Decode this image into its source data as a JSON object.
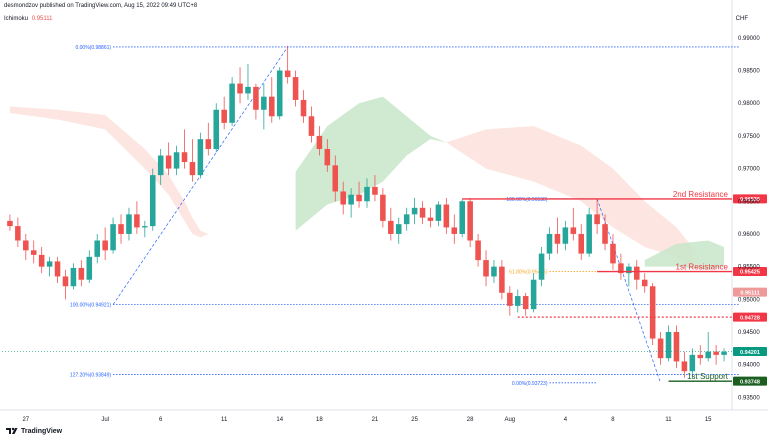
{
  "header": {
    "text": "desmondzov published on TradingView.com, Aug 15, 2022 09:49 UTC+8"
  },
  "indicator": {
    "name": "Ichimoku",
    "value": "0.95111"
  },
  "currency": "CHF",
  "footer": {
    "brand": "TradingView"
  },
  "colors": {
    "up": "#26a69a",
    "down": "#ef5350",
    "cloud_bull": "#c8e6c9",
    "cloud_bear": "#fde0dc",
    "fib": "#2962ff",
    "resistance": "#f23645",
    "support": "#1b5e20"
  },
  "chart_data": {
    "type": "candlestick",
    "ylim": [
      0.9346,
      0.9912
    ],
    "y_ticks": [
      "0.93500",
      "0.94000",
      "0.94500",
      "0.95000",
      "0.95500",
      "0.96000",
      "0.96500",
      "0.97000",
      "0.97500",
      "0.98000",
      "0.98500",
      "0.99000"
    ],
    "x_labels": [
      {
        "label": "27",
        "i": 2
      },
      {
        "label": "Jul",
        "i": 12
      },
      {
        "label": "6",
        "i": 19
      },
      {
        "label": "11",
        "i": 27
      },
      {
        "label": "14",
        "i": 34
      },
      {
        "label": "18",
        "i": 39
      },
      {
        "label": "21",
        "i": 46
      },
      {
        "label": "25",
        "i": 51
      },
      {
        "label": "28",
        "i": 58
      },
      {
        "label": "Aug",
        "i": 63
      },
      {
        "label": "4",
        "i": 70
      },
      {
        "label": "8",
        "i": 76
      },
      {
        "label": "11",
        "i": 83
      },
      {
        "label": "15",
        "i": 88
      }
    ],
    "candles": [
      [
        0.962,
        0.963,
        0.9605,
        0.9612
      ],
      [
        0.9612,
        0.9625,
        0.958,
        0.959
      ],
      [
        0.959,
        0.96,
        0.956,
        0.9575
      ],
      [
        0.9575,
        0.959,
        0.9555,
        0.9568
      ],
      [
        0.9568,
        0.958,
        0.954,
        0.955
      ],
      [
        0.955,
        0.9565,
        0.9535,
        0.9558
      ],
      [
        0.9558,
        0.9565,
        0.9525,
        0.9535
      ],
      [
        0.9535,
        0.9545,
        0.95,
        0.952
      ],
      [
        0.952,
        0.9555,
        0.9515,
        0.9548
      ],
      [
        0.9548,
        0.956,
        0.952,
        0.953
      ],
      [
        0.953,
        0.9575,
        0.9525,
        0.9565
      ],
      [
        0.9565,
        0.96,
        0.9555,
        0.959
      ],
      [
        0.959,
        0.961,
        0.956,
        0.9575
      ],
      [
        0.9575,
        0.9625,
        0.957,
        0.9615
      ],
      [
        0.9615,
        0.963,
        0.9585,
        0.96
      ],
      [
        0.96,
        0.964,
        0.959,
        0.963
      ],
      [
        0.963,
        0.965,
        0.96,
        0.961
      ],
      [
        0.961,
        0.962,
        0.9595,
        0.9612
      ],
      [
        0.9612,
        0.97,
        0.9605,
        0.969
      ],
      [
        0.969,
        0.973,
        0.9675,
        0.972
      ],
      [
        0.972,
        0.974,
        0.969,
        0.97
      ],
      [
        0.97,
        0.9735,
        0.969,
        0.9725
      ],
      [
        0.9725,
        0.976,
        0.97,
        0.971
      ],
      [
        0.971,
        0.9745,
        0.968,
        0.969
      ],
      [
        0.969,
        0.9755,
        0.9685,
        0.9745
      ],
      [
        0.9745,
        0.977,
        0.972,
        0.973
      ],
      [
        0.973,
        0.98,
        0.9725,
        0.979
      ],
      [
        0.979,
        0.981,
        0.976,
        0.977
      ],
      [
        0.977,
        0.984,
        0.9765,
        0.983
      ],
      [
        0.983,
        0.9855,
        0.98,
        0.9815
      ],
      [
        0.9815,
        0.986,
        0.9805,
        0.9825
      ],
      [
        0.9825,
        0.983,
        0.9775,
        0.979
      ],
      [
        0.979,
        0.983,
        0.976,
        0.981
      ],
      [
        0.981,
        0.984,
        0.977,
        0.978
      ],
      [
        0.978,
        0.9855,
        0.9775,
        0.985
      ],
      [
        0.985,
        0.9888,
        0.983,
        0.984
      ],
      [
        0.984,
        0.985,
        0.9795,
        0.9805
      ],
      [
        0.9805,
        0.982,
        0.977,
        0.978
      ],
      [
        0.978,
        0.9795,
        0.974,
        0.975
      ],
      [
        0.975,
        0.9765,
        0.972,
        0.973
      ],
      [
        0.973,
        0.9745,
        0.9695,
        0.9705
      ],
      [
        0.9705,
        0.972,
        0.965,
        0.9665
      ],
      [
        0.9665,
        0.968,
        0.963,
        0.9645
      ],
      [
        0.9645,
        0.967,
        0.9625,
        0.966
      ],
      [
        0.966,
        0.968,
        0.964,
        0.965
      ],
      [
        0.965,
        0.9685,
        0.964,
        0.9672
      ],
      [
        0.9672,
        0.969,
        0.965,
        0.966
      ],
      [
        0.966,
        0.967,
        0.961,
        0.962
      ],
      [
        0.962,
        0.964,
        0.959,
        0.96
      ],
      [
        0.96,
        0.9625,
        0.9585,
        0.9615
      ],
      [
        0.9615,
        0.964,
        0.9605,
        0.963
      ],
      [
        0.963,
        0.9655,
        0.9615,
        0.964
      ],
      [
        0.964,
        0.965,
        0.9615,
        0.9625
      ],
      [
        0.9625,
        0.964,
        0.961,
        0.962
      ],
      [
        0.962,
        0.965,
        0.9612,
        0.9645
      ],
      [
        0.9645,
        0.9655,
        0.96,
        0.961
      ],
      [
        0.961,
        0.963,
        0.9585,
        0.96
      ],
      [
        0.96,
        0.9653,
        0.9595,
        0.965
      ],
      [
        0.965,
        0.9655,
        0.958,
        0.959
      ],
      [
        0.959,
        0.96,
        0.955,
        0.956
      ],
      [
        0.956,
        0.9575,
        0.952,
        0.9535
      ],
      [
        0.9535,
        0.956,
        0.9525,
        0.955
      ],
      [
        0.955,
        0.956,
        0.95,
        0.951
      ],
      [
        0.951,
        0.952,
        0.9475,
        0.949
      ],
      [
        0.949,
        0.9515,
        0.948,
        0.9505
      ],
      [
        0.9505,
        0.951,
        0.9475,
        0.9485
      ],
      [
        0.9485,
        0.954,
        0.948,
        0.953
      ],
      [
        0.953,
        0.958,
        0.952,
        0.957
      ],
      [
        0.957,
        0.961,
        0.956,
        0.96
      ],
      [
        0.96,
        0.9625,
        0.957,
        0.9585
      ],
      [
        0.9585,
        0.962,
        0.9575,
        0.961
      ],
      [
        0.961,
        0.964,
        0.959,
        0.96
      ],
      [
        0.96,
        0.9615,
        0.956,
        0.957
      ],
      [
        0.957,
        0.964,
        0.9565,
        0.963
      ],
      [
        0.963,
        0.9653,
        0.96,
        0.9615
      ],
      [
        0.9615,
        0.963,
        0.9575,
        0.9585
      ],
      [
        0.9585,
        0.96,
        0.9545,
        0.9555
      ],
      [
        0.9555,
        0.957,
        0.953,
        0.954
      ],
      [
        0.954,
        0.9555,
        0.952,
        0.955
      ],
      [
        0.955,
        0.956,
        0.9515,
        0.953
      ],
      [
        0.953,
        0.954,
        0.951,
        0.952
      ],
      [
        0.952,
        0.9525,
        0.943,
        0.944
      ],
      [
        0.944,
        0.945,
        0.94,
        0.941
      ],
      [
        0.941,
        0.946,
        0.9405,
        0.945
      ],
      [
        0.945,
        0.946,
        0.9395,
        0.9405
      ],
      [
        0.9405,
        0.942,
        0.938,
        0.939
      ],
      [
        0.939,
        0.9425,
        0.938,
        0.9415
      ],
      [
        0.9415,
        0.943,
        0.94,
        0.941
      ],
      [
        0.941,
        0.945,
        0.9405,
        0.942
      ],
      [
        0.942,
        0.943,
        0.94,
        0.9415
      ],
      [
        0.9415,
        0.9425,
        0.9405,
        0.942
      ]
    ],
    "cloud": [
      {
        "type": "bear",
        "points": [
          [
            0,
            0.9795
          ],
          [
            6,
            0.979
          ],
          [
            12,
            0.9782
          ],
          [
            17,
            0.973
          ],
          [
            20,
            0.969
          ],
          [
            22,
            0.965
          ],
          [
            23,
            0.9625
          ],
          [
            24,
            0.9605
          ],
          [
            25,
            0.96
          ]
        ],
        "base": [
          [
            0,
            0.9785
          ],
          [
            6,
            0.9775
          ],
          [
            12,
            0.976
          ],
          [
            17,
            0.97
          ],
          [
            20,
            0.966
          ],
          [
            22,
            0.962
          ],
          [
            23,
            0.96
          ],
          [
            24,
            0.9595
          ],
          [
            25,
            0.96
          ]
        ]
      },
      {
        "type": "bull",
        "points": [
          [
            36,
            0.9695
          ],
          [
            40,
            0.9765
          ],
          [
            44,
            0.98
          ],
          [
            47,
            0.981
          ],
          [
            50,
            0.978
          ],
          [
            53,
            0.975
          ],
          [
            55,
            0.974
          ]
        ],
        "base": [
          [
            36,
            0.9605
          ],
          [
            40,
            0.9645
          ],
          [
            44,
            0.966
          ],
          [
            47,
            0.968
          ],
          [
            50,
            0.972
          ],
          [
            53,
            0.9745
          ],
          [
            55,
            0.974
          ]
        ]
      },
      {
        "type": "bear",
        "points": [
          [
            55,
            0.974
          ],
          [
            60,
            0.976
          ],
          [
            66,
            0.9765
          ],
          [
            72,
            0.9735
          ],
          [
            76,
            0.97
          ],
          [
            80,
            0.965
          ],
          [
            84,
            0.961
          ],
          [
            86,
            0.958
          ]
        ],
        "base": [
          [
            55,
            0.974
          ],
          [
            60,
            0.97
          ],
          [
            66,
            0.968
          ],
          [
            72,
            0.965
          ],
          [
            76,
            0.961
          ],
          [
            80,
            0.958
          ],
          [
            84,
            0.9565
          ],
          [
            86,
            0.9545
          ]
        ]
      },
      {
        "type": "bull",
        "points": [
          [
            80,
            0.956
          ],
          [
            84,
            0.9585
          ],
          [
            88,
            0.959
          ],
          [
            90,
            0.958
          ]
        ],
        "base": [
          [
            80,
            0.955
          ],
          [
            84,
            0.955
          ],
          [
            88,
            0.9545
          ],
          [
            90,
            0.955
          ]
        ]
      }
    ],
    "fib_lines": [
      {
        "label": "0.00%(0.98861)",
        "value": 0.98861,
        "i1": 13,
        "i2": 92
      },
      {
        "label": "100.00%(0.94921)",
        "value": 0.94921,
        "i1": 13,
        "i2": 92
      },
      {
        "label": "127.20%(0.93849)",
        "value": 0.93849,
        "i1": 13,
        "i2": 92
      },
      {
        "label": "100.00%(0.96538)",
        "value": 0.96538,
        "i1": 68,
        "i2": 74
      },
      {
        "label": "61.80%(0.95425)",
        "value": 0.95425,
        "i1": 68,
        "i2": 74
      },
      {
        "label": "0.00%(0.93723)",
        "value": 0.93723,
        "i1": 68,
        "i2": 74
      }
    ],
    "levels": [
      {
        "label": "2nd Resistance",
        "value": 0.96536,
        "price_label": "0.96536",
        "color": "#f23645",
        "i1": 57,
        "style": "solid"
      },
      {
        "label": "1st Resistance",
        "value": 0.95425,
        "price_label": "0.95425",
        "color": "#f23645",
        "i1": 74,
        "style": "solid"
      },
      {
        "label": "",
        "value": 0.94728,
        "price_label": "0.94728",
        "color": "#f23645",
        "i1": 64,
        "style": "dotted"
      },
      {
        "label": "1st Support",
        "value": 0.93748,
        "price_label": "0.93748",
        "color": "#1b5e20",
        "i1": 83,
        "style": "solid"
      }
    ],
    "current_price": {
      "value": 0.94201,
      "label": "0.94201",
      "color": "#089981"
    },
    "ichimoku_label": {
      "value": 0.95111,
      "label": "0.95111",
      "color": "#ef9a9a"
    }
  }
}
